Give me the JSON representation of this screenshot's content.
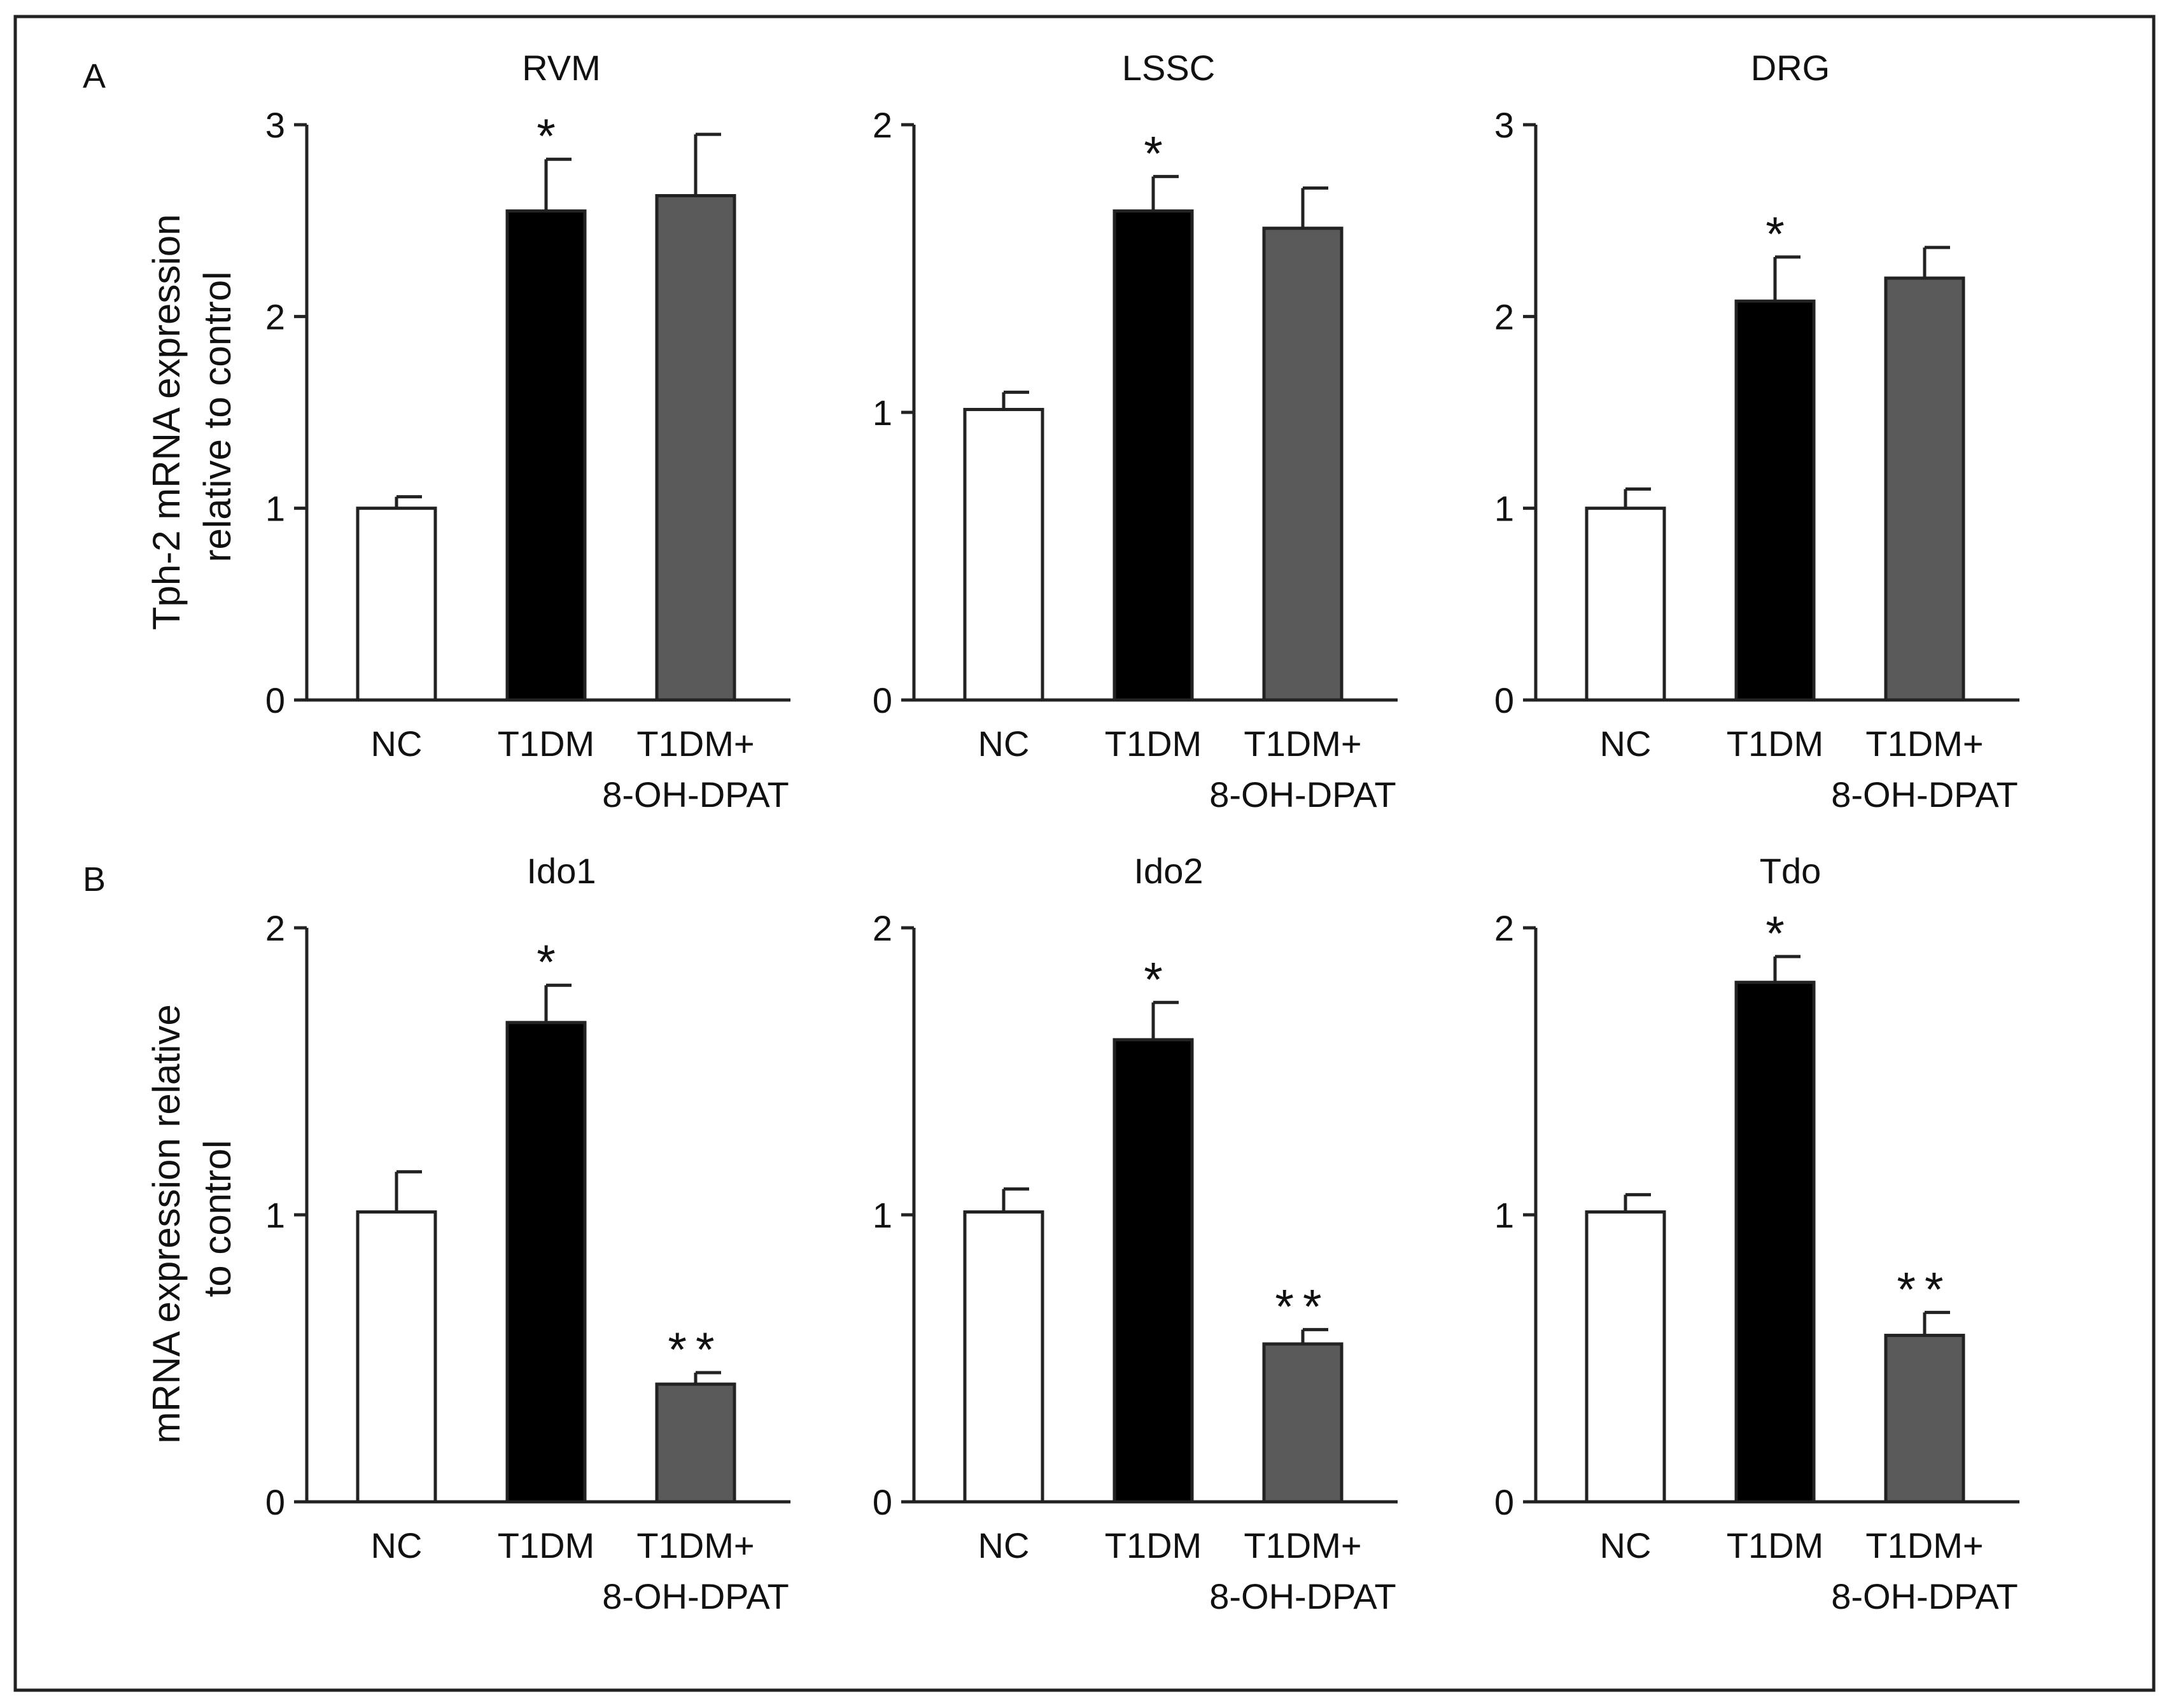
{
  "figure": {
    "panel_a_label": "A",
    "panel_b_label": "B",
    "ylabel_a": [
      "Tph-2 mRNA expression",
      "relative to control"
    ],
    "ylabel_b": [
      "mRNA expression relative",
      "to control"
    ]
  },
  "colors": {
    "nc": "#ffffff",
    "t1dm": "#000000",
    "treated": "#5a5a5a",
    "axis": "#222222",
    "frame": "#222222"
  },
  "chart_data": [
    {
      "type": "bar",
      "title": "RVM",
      "categories": [
        [
          "NC"
        ],
        [
          "T1DM"
        ],
        [
          "T1DM+",
          "8-OH-DPAT"
        ]
      ],
      "values": [
        1.0,
        2.55,
        2.63
      ],
      "errors": [
        0.06,
        0.27,
        0.32
      ],
      "annotations": [
        "",
        "*",
        ""
      ],
      "ylim": [
        0,
        3
      ],
      "yticks": [
        0,
        1,
        2,
        3
      ]
    },
    {
      "type": "bar",
      "title": "LSSC",
      "categories": [
        [
          "NC"
        ],
        [
          "T1DM"
        ],
        [
          "T1DM+",
          "8-OH-DPAT"
        ]
      ],
      "values": [
        1.01,
        1.7,
        1.64
      ],
      "errors": [
        0.06,
        0.12,
        0.14
      ],
      "annotations": [
        "",
        "*",
        ""
      ],
      "ylim": [
        0,
        2
      ],
      "yticks": [
        0,
        1,
        2
      ]
    },
    {
      "type": "bar",
      "title": "DRG",
      "categories": [
        [
          "NC"
        ],
        [
          "T1DM"
        ],
        [
          "T1DM+",
          "8-OH-DPAT"
        ]
      ],
      "values": [
        1.0,
        2.08,
        2.2
      ],
      "errors": [
        0.1,
        0.23,
        0.16
      ],
      "annotations": [
        "",
        "*",
        ""
      ],
      "ylim": [
        0,
        3
      ],
      "yticks": [
        0,
        1,
        2,
        3
      ]
    },
    {
      "type": "bar",
      "title": "Ido1",
      "categories": [
        [
          "NC"
        ],
        [
          "T1DM"
        ],
        [
          "T1DM+",
          "8-OH-DPAT"
        ]
      ],
      "values": [
        1.01,
        1.67,
        0.41
      ],
      "errors": [
        0.14,
        0.13,
        0.04
      ],
      "annotations": [
        "",
        "*",
        "**"
      ],
      "ylim": [
        0,
        2
      ],
      "yticks": [
        0,
        1,
        2
      ]
    },
    {
      "type": "bar",
      "title": "Ido2",
      "categories": [
        [
          "NC"
        ],
        [
          "T1DM"
        ],
        [
          "T1DM+",
          "8-OH-DPAT"
        ]
      ],
      "values": [
        1.01,
        1.61,
        0.55
      ],
      "errors": [
        0.08,
        0.13,
        0.05
      ],
      "annotations": [
        "",
        "*",
        "**"
      ],
      "ylim": [
        0,
        2
      ],
      "yticks": [
        0,
        1,
        2
      ]
    },
    {
      "type": "bar",
      "title": "Tdo",
      "categories": [
        [
          "NC"
        ],
        [
          "T1DM"
        ],
        [
          "T1DM+",
          "8-OH-DPAT"
        ]
      ],
      "values": [
        1.01,
        1.81,
        0.58
      ],
      "errors": [
        0.06,
        0.09,
        0.08
      ],
      "annotations": [
        "",
        "*",
        "**"
      ],
      "ylim": [
        0,
        2
      ],
      "yticks": [
        0,
        1,
        2
      ]
    }
  ]
}
